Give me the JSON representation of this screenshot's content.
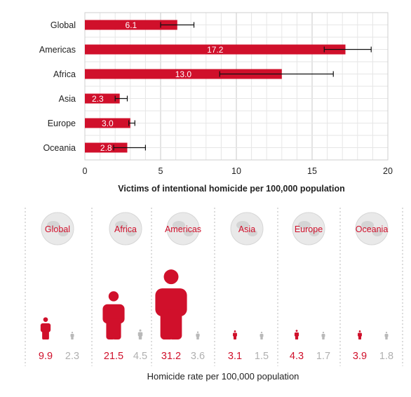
{
  "colors": {
    "accent": "#d0102b",
    "muted": "#b9b9b9",
    "grid": "#d8d8d8",
    "globe": "#e9e9e9"
  },
  "chart_data": [
    {
      "type": "bar",
      "orientation": "horizontal",
      "title": "",
      "xlabel": "Victims of intentional homicide per 100,000 population",
      "ylabel": "",
      "categories": [
        "Global",
        "Americas",
        "Africa",
        "Asia",
        "Europe",
        "Oceania"
      ],
      "values": [
        6.1,
        17.2,
        13.0,
        2.3,
        3.0,
        2.8
      ],
      "value_labels": [
        "6.1",
        "17.2",
        "13.0",
        "2.3",
        "3.0",
        "2.8"
      ],
      "error_low": [
        5.0,
        15.8,
        8.9,
        2.0,
        2.9,
        1.9
      ],
      "error_high": [
        7.2,
        18.9,
        16.4,
        2.8,
        3.3,
        4.0
      ],
      "xlim": [
        0,
        20
      ],
      "xticks": [
        "0",
        "5",
        "10",
        "15",
        "20"
      ],
      "grid": true
    },
    {
      "type": "bar",
      "xlabel": "Homicide rate per 100,000 population",
      "categories": [
        "Global",
        "Africa",
        "Americas",
        "Asia",
        "Europe",
        "Oceania"
      ],
      "series": [
        {
          "values": [
            9.9,
            21.5,
            31.2,
            3.1,
            4.3,
            3.9
          ],
          "labels": [
            "9.9",
            "21.5",
            "31.2",
            "3.1",
            "4.3",
            "3.9"
          ]
        },
        {
          "values": [
            2.3,
            4.5,
            3.6,
            1.5,
            1.7,
            1.8
          ],
          "labels": [
            "2.3",
            "4.5",
            "3.6",
            "1.5",
            "1.7",
            "1.8"
          ]
        }
      ],
      "marker": "person-icon",
      "region_icon": "globe-icon"
    }
  ]
}
